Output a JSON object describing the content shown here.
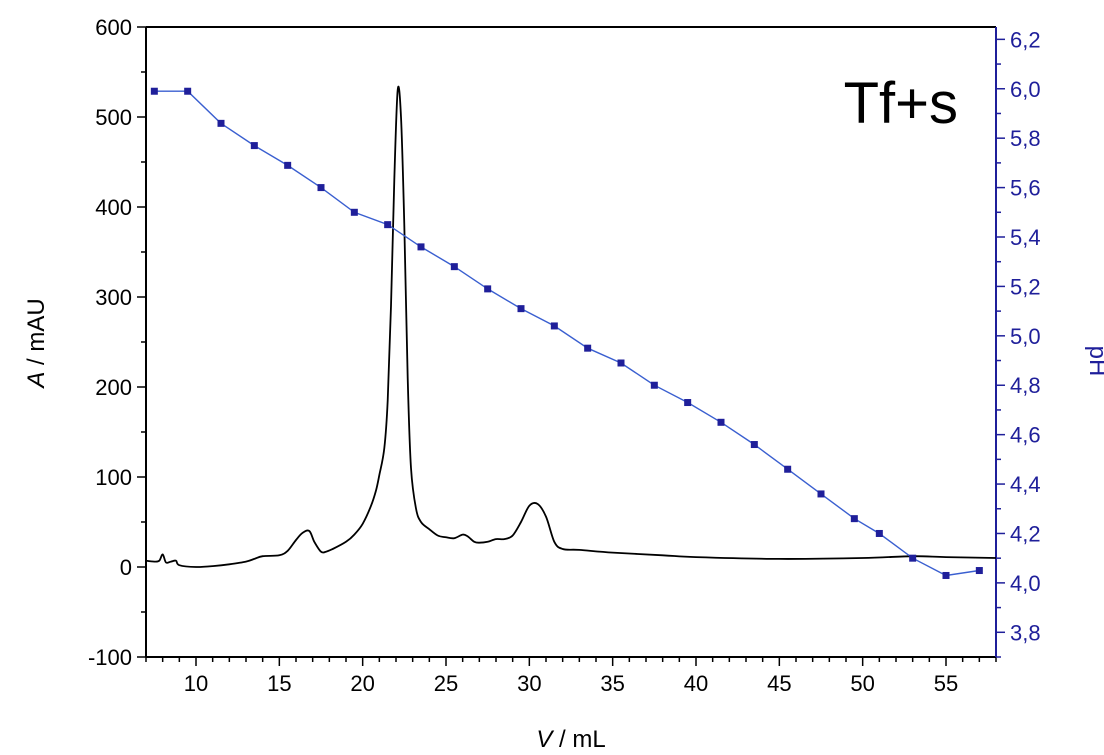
{
  "chart_data": {
    "type": "line",
    "annotation": "Tf+s",
    "xlabel": {
      "var": "V",
      "unit": " / mL"
    },
    "ylabel_left": {
      "var": "A",
      "unit": " / mAU"
    },
    "ylabel_right": "pH",
    "xlim": [
      7,
      58
    ],
    "ylim_left": [
      -100,
      600
    ],
    "ylim_right": [
      3.7,
      6.25
    ],
    "x_ticks": [
      10,
      15,
      20,
      25,
      30,
      35,
      40,
      45,
      50,
      55
    ],
    "y_left_ticks": [
      -100,
      0,
      100,
      200,
      300,
      400,
      500,
      600
    ],
    "y_right_ticks": [
      "3,8",
      "4,0",
      "4,2",
      "4,4",
      "4,6",
      "4,8",
      "5,0",
      "5,2",
      "5,4",
      "5,6",
      "5,8",
      "6,0",
      "6,2"
    ],
    "y_right_tick_values": [
      3.8,
      4.0,
      4.2,
      4.4,
      4.6,
      4.8,
      5.0,
      5.2,
      5.4,
      5.6,
      5.8,
      6.0,
      6.2
    ],
    "grid": false,
    "colors": {
      "absorbance": "#000000",
      "ph": "#1f1f9a",
      "ph_line": "#3a5fd0"
    },
    "series": [
      {
        "axis": "left",
        "x": [
          7.0,
          7.5,
          7.8,
          8.0,
          8.2,
          8.5,
          8.8,
          9.0,
          10.0,
          11.0,
          12.0,
          13.0,
          13.5,
          14.0,
          15.0,
          15.5,
          16.0,
          16.4,
          16.8,
          17.1,
          17.5,
          17.8,
          18.2,
          19.0,
          19.5,
          20.0,
          20.5,
          20.8,
          21.0,
          21.3,
          21.5,
          21.7,
          21.9,
          22.1,
          22.3,
          22.5,
          22.7,
          22.9,
          23.2,
          23.5,
          24.0,
          24.5,
          25.0,
          25.5,
          26.0,
          26.3,
          26.7,
          27.0,
          27.5,
          28.0,
          28.5,
          29.0,
          29.5,
          30.0,
          30.5,
          31.0,
          31.5,
          32.0,
          33.0,
          35.0,
          38.0,
          40.0,
          45.0,
          50.0,
          53.0,
          55.0,
          58.0
        ],
        "y": [
          7,
          6,
          7,
          14,
          5,
          6,
          7,
          2,
          0,
          1,
          3,
          6,
          9,
          12,
          13,
          18,
          30,
          38,
          40,
          28,
          17,
          17,
          20,
          28,
          36,
          48,
          68,
          85,
          102,
          132,
          185,
          290,
          430,
          530,
          500,
          380,
          210,
          110,
          65,
          50,
          42,
          35,
          33,
          32,
          36,
          34,
          28,
          27,
          28,
          31,
          31,
          35,
          50,
          68,
          70,
          56,
          28,
          20,
          19,
          16,
          13,
          11,
          9,
          10,
          12,
          11,
          10
        ]
      },
      {
        "axis": "right",
        "marker": "square",
        "x": [
          7.5,
          9.5,
          11.5,
          13.5,
          15.5,
          17.5,
          19.5,
          21.5,
          23.5,
          25.5,
          27.5,
          29.5,
          31.5,
          33.5,
          35.5,
          37.5,
          39.5,
          41.5,
          43.5,
          45.5,
          47.5,
          49.5,
          51.0,
          53.0,
          55.0,
          57.0
        ],
        "y": [
          5.99,
          5.99,
          5.86,
          5.77,
          5.69,
          5.6,
          5.5,
          5.45,
          5.36,
          5.28,
          5.19,
          5.11,
          5.04,
          4.95,
          4.89,
          4.8,
          4.73,
          4.65,
          4.56,
          4.46,
          4.36,
          4.26,
          4.2,
          4.1,
          4.03,
          4.05
        ]
      }
    ]
  }
}
